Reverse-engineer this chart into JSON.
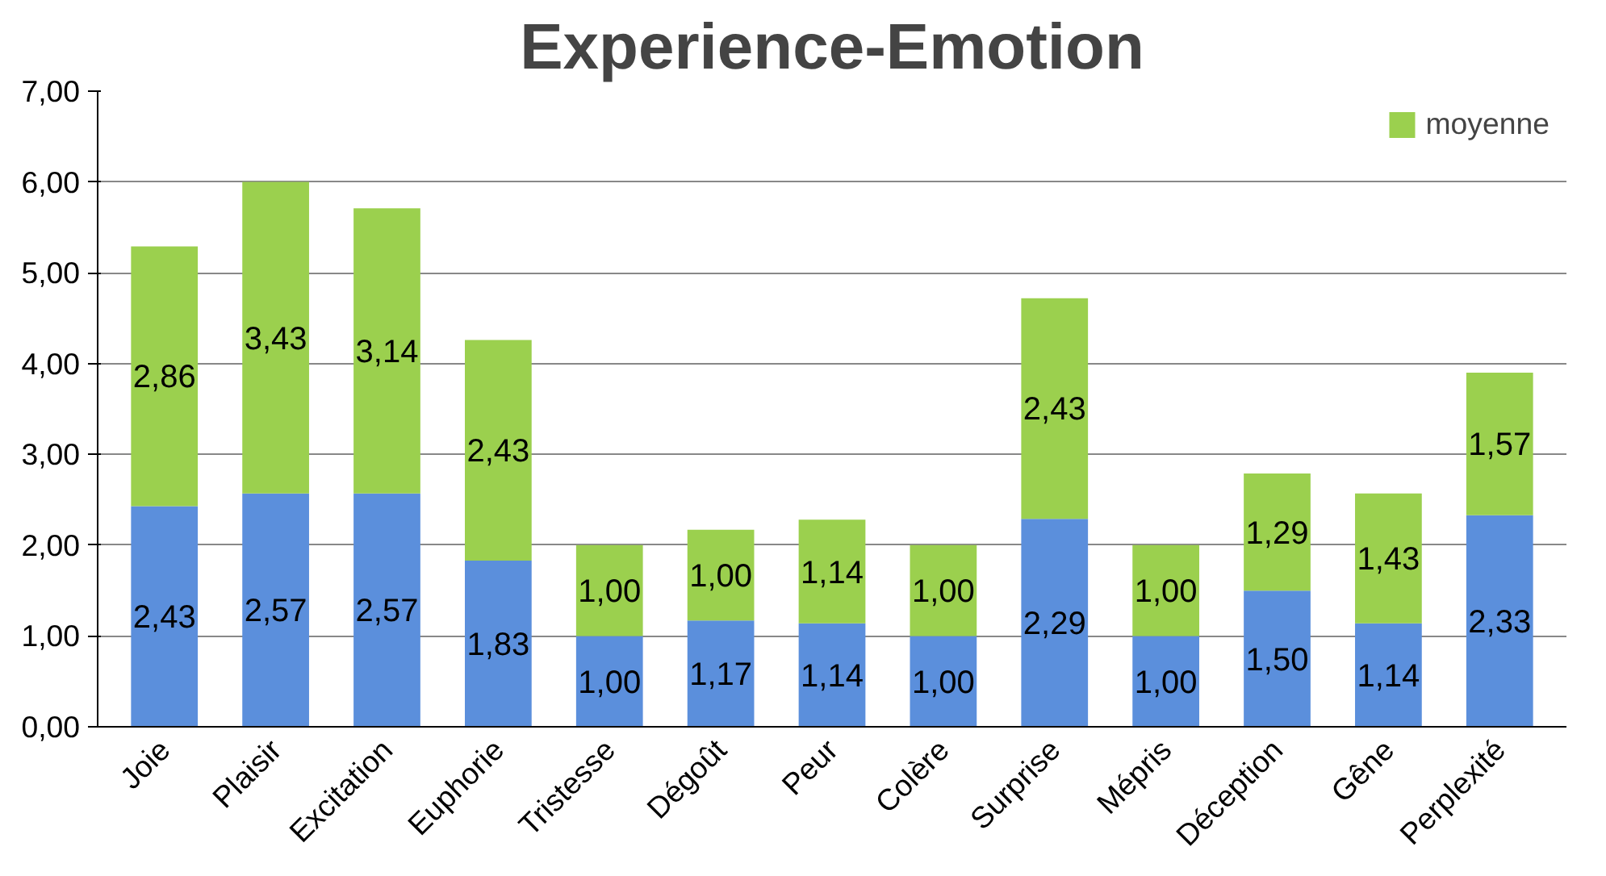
{
  "chart_data": {
    "type": "bar",
    "title": "Experience-Emotion",
    "stacked": true,
    "categories": [
      "Joie",
      "Plaisir",
      "Excitation",
      "Euphorie",
      "Tristesse",
      "Dégoût",
      "Peur",
      "Colère",
      "Surprise",
      "Mépris",
      "Déception",
      "Gêne",
      "Perplexité"
    ],
    "series": [
      {
        "color": "#5b8fdc",
        "values": [
          2.43,
          2.57,
          2.57,
          1.83,
          1.0,
          1.17,
          1.14,
          1.0,
          2.29,
          1.0,
          1.5,
          1.14,
          2.33
        ],
        "value_labels": [
          "2,43",
          "2,57",
          "2,57",
          "1,83",
          "1,00",
          "1,17",
          "1,14",
          "1,00",
          "2,29",
          "1,00",
          "1,50",
          "1,14",
          "2,33"
        ]
      },
      {
        "name": "moyenne",
        "color": "#9bd04e",
        "values": [
          2.86,
          3.43,
          3.14,
          2.43,
          1.0,
          1.0,
          1.14,
          1.0,
          2.43,
          1.0,
          1.29,
          1.43,
          1.57
        ],
        "value_labels": [
          "2,86",
          "3,43",
          "3,14",
          "2,43",
          "1,00",
          "1,00",
          "1,14",
          "1,00",
          "2,43",
          "1,00",
          "1,29",
          "1,43",
          "1,57"
        ]
      }
    ],
    "ylim": [
      0,
      7
    ],
    "yticks": [
      {
        "value": 0,
        "label": "0,00"
      },
      {
        "value": 1,
        "label": "1,00"
      },
      {
        "value": 2,
        "label": "2,00"
      },
      {
        "value": 3,
        "label": "3,00"
      },
      {
        "value": 4,
        "label": "4,00"
      },
      {
        "value": 5,
        "label": "5,00"
      },
      {
        "value": 6,
        "label": "6,00"
      },
      {
        "value": 7,
        "label": "7,00"
      }
    ],
    "grid": "y",
    "legend": "top right"
  }
}
